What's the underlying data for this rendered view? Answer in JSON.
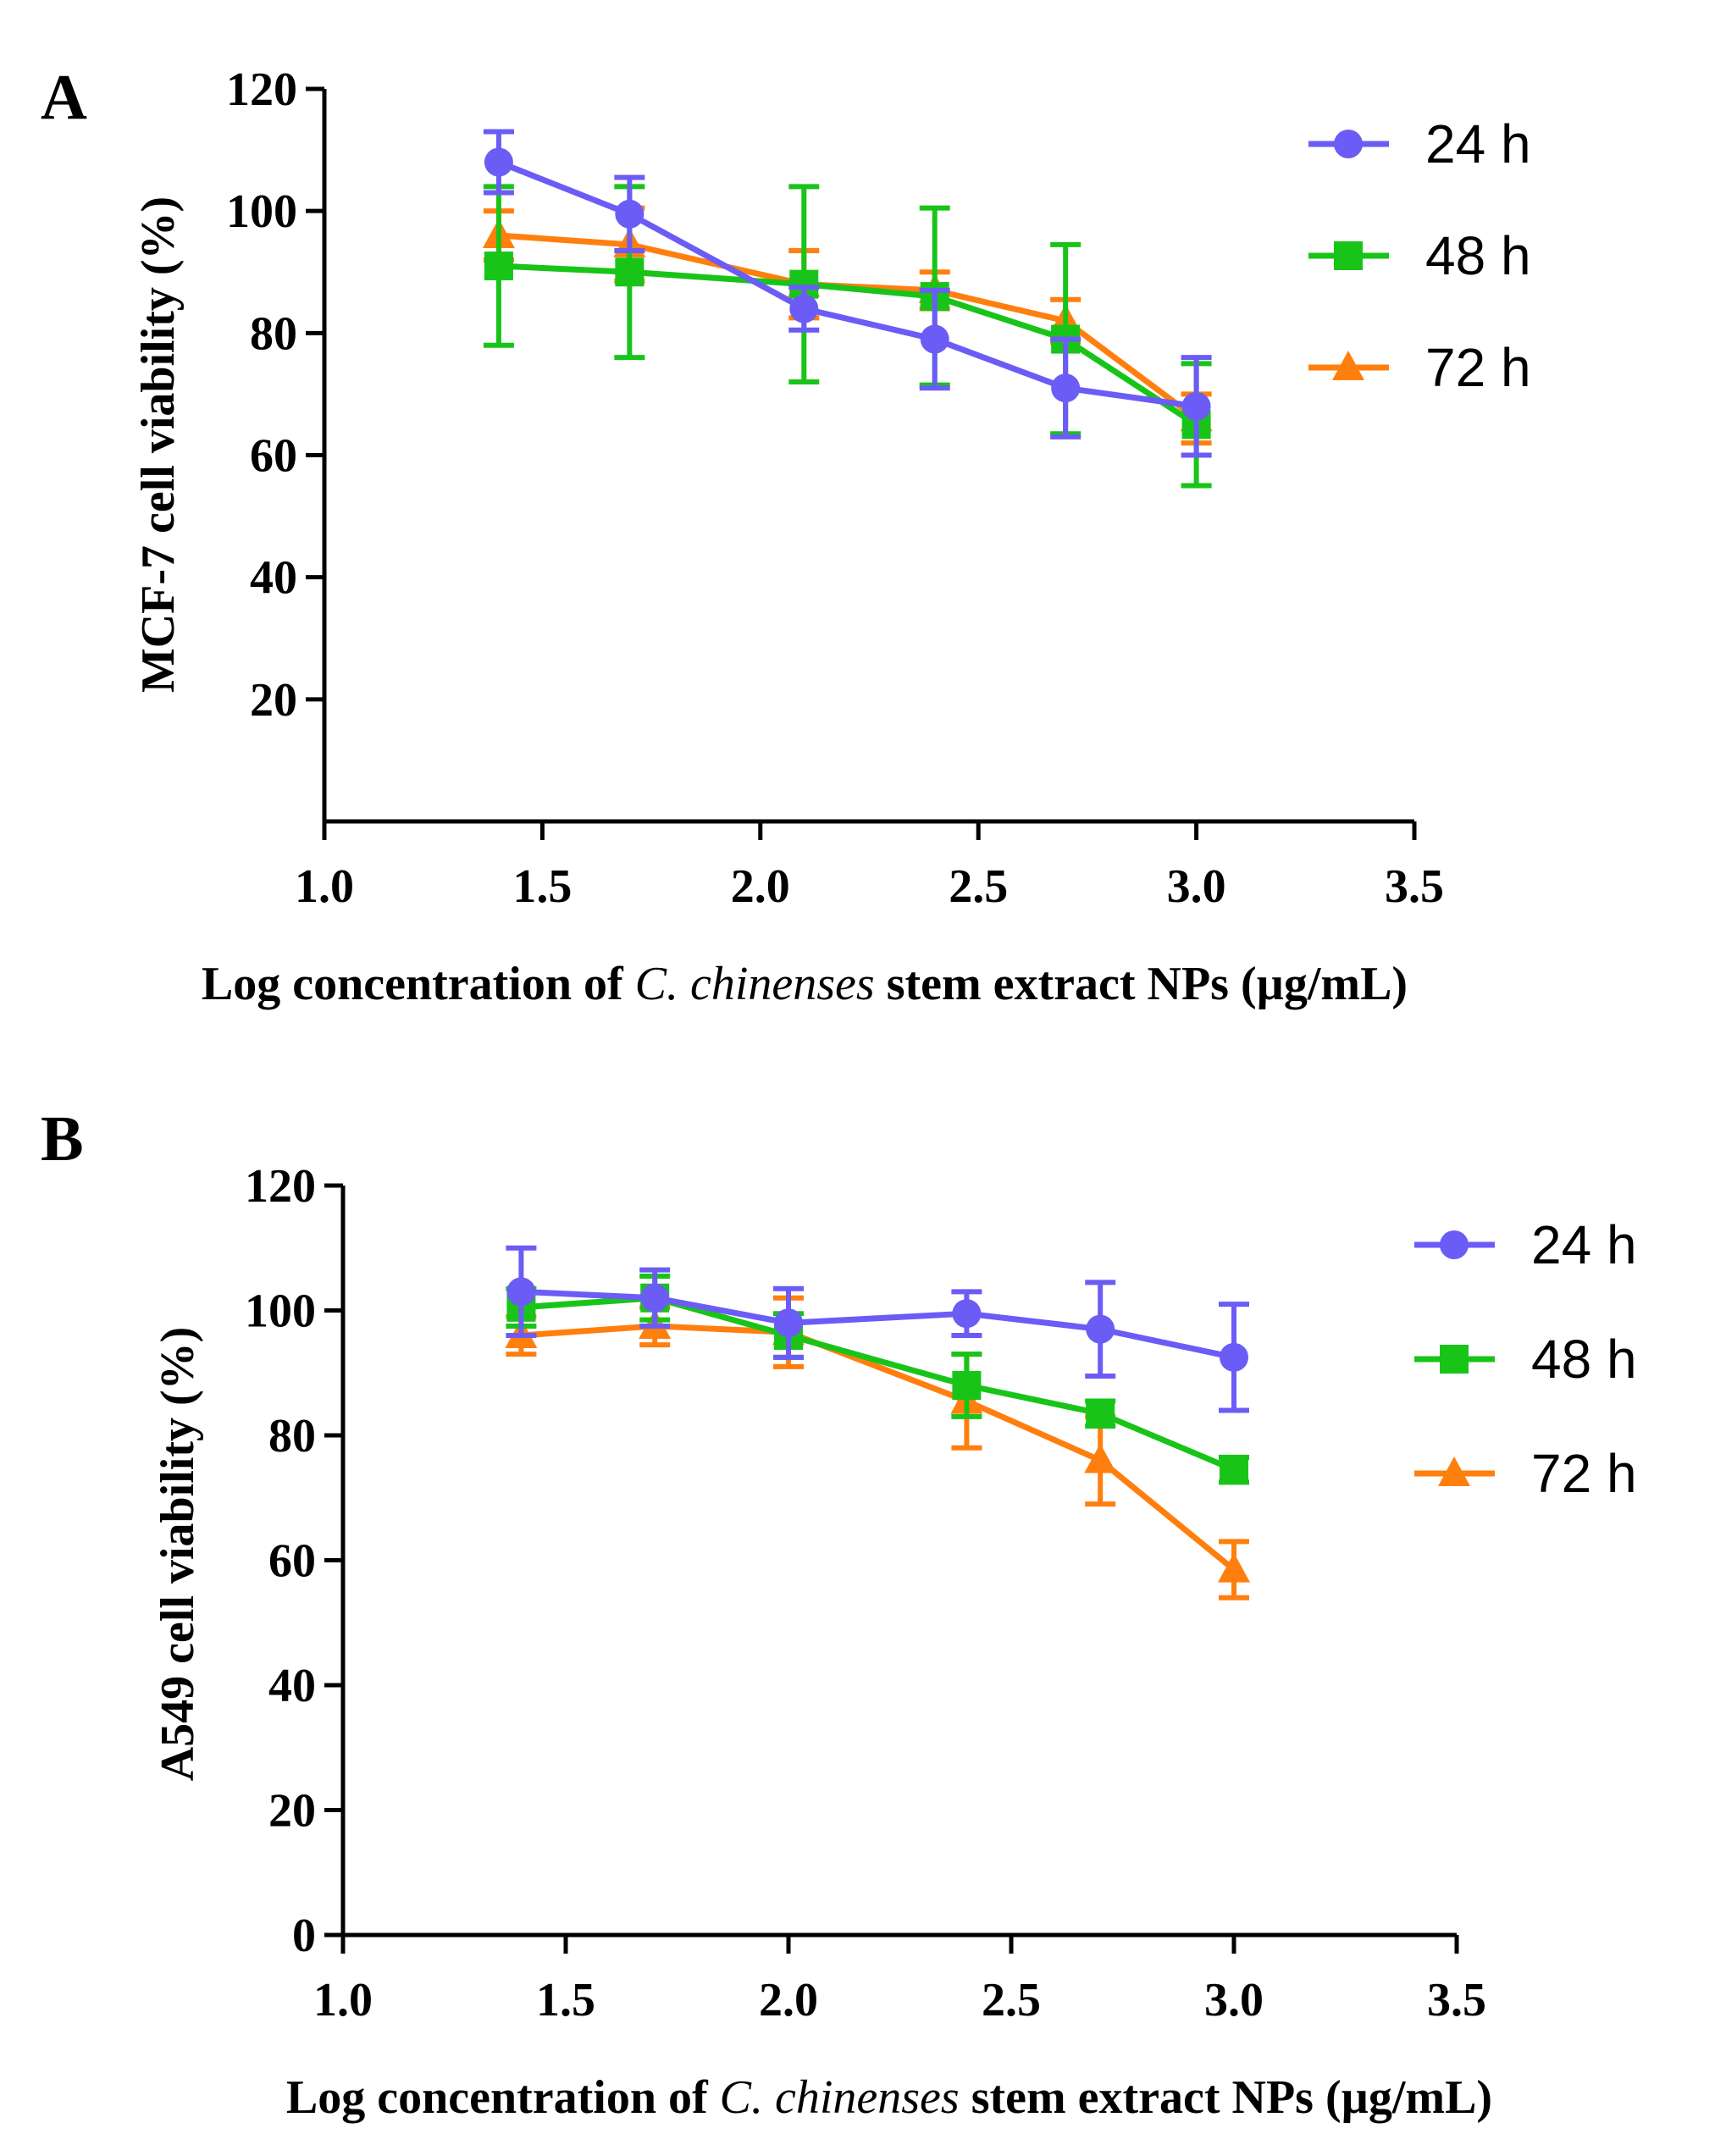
{
  "chart_data": [
    {
      "type": "line",
      "panel_label": "A",
      "xlabel_parts": [
        "Log concentration of ",
        "C. chinenses",
        " stem extract NPs (µg/mL)"
      ],
      "ylabel": "MCF-7 cell viability (%)",
      "xlim": [
        1.0,
        3.5
      ],
      "ylim": [
        0,
        120
      ],
      "xticks": [
        "1.0",
        "1.5",
        "2.0",
        "2.5",
        "3.0",
        "3.5"
      ],
      "yticks": [
        "20",
        "40",
        "60",
        "80",
        "100",
        "120"
      ],
      "legend_position": "top-right",
      "series": [
        {
          "name": "24 h",
          "color": "#6b5cf6",
          "marker": "circle",
          "x": [
            1.4,
            1.7,
            2.1,
            2.4,
            2.7,
            3.0
          ],
          "y": [
            108,
            99.5,
            84,
            79,
            71,
            68
          ],
          "err": [
            5,
            6,
            3.5,
            8,
            8,
            8
          ]
        },
        {
          "name": "48 h",
          "color": "#19c419",
          "marker": "square",
          "x": [
            1.4,
            1.7,
            2.1,
            2.4,
            2.7,
            3.0
          ],
          "y": [
            91,
            90,
            88,
            86,
            79,
            65
          ],
          "err": [
            13,
            14,
            16,
            14.5,
            15.5,
            10
          ]
        },
        {
          "name": "72 h",
          "color": "#ff7f0e",
          "marker": "triangle",
          "x": [
            1.4,
            1.7,
            2.1,
            2.4,
            2.7,
            3.0
          ],
          "y": [
            96,
            94.5,
            88,
            87,
            82,
            66
          ],
          "err": [
            4,
            6,
            5.5,
            3,
            3.5,
            4
          ]
        }
      ]
    },
    {
      "type": "line",
      "panel_label": "B",
      "xlabel_parts": [
        "Log concentration of ",
        "C. chinenses",
        " stem extract NPs (µg/mL)"
      ],
      "ylabel": "A549 cell viability (%)",
      "xlim": [
        1.0,
        3.5
      ],
      "ylim": [
        0,
        120
      ],
      "xticks": [
        "1.0",
        "1.5",
        "2.0",
        "2.5",
        "3.0",
        "3.5"
      ],
      "yticks": [
        "0",
        "20",
        "40",
        "60",
        "80",
        "100",
        "120"
      ],
      "legend_position": "top-right",
      "series": [
        {
          "name": "24 h",
          "color": "#6b5cf6",
          "marker": "circle",
          "x": [
            1.4,
            1.7,
            2.0,
            2.4,
            2.7,
            3.0
          ],
          "y": [
            103,
            102,
            98,
            99.5,
            97,
            92.5
          ],
          "err": [
            7,
            4.5,
            5.5,
            3.5,
            7.5,
            8.5
          ]
        },
        {
          "name": "48 h",
          "color": "#19c419",
          "marker": "square",
          "x": [
            1.4,
            1.7,
            2.0,
            2.4,
            2.7,
            3.0
          ],
          "y": [
            100.5,
            102,
            96,
            88,
            83.5,
            74.5
          ],
          "err": [
            3,
            3.5,
            3.5,
            5,
            2,
            2
          ]
        },
        {
          "name": "72 h",
          "color": "#ff7f0e",
          "marker": "triangle",
          "x": [
            1.4,
            1.7,
            2.0,
            2.4,
            2.7,
            3.0
          ],
          "y": [
            96,
            97.5,
            96.5,
            85.5,
            76,
            58.5
          ],
          "err": [
            3,
            3,
            5.5,
            7.5,
            7,
            4.5
          ]
        }
      ]
    }
  ]
}
